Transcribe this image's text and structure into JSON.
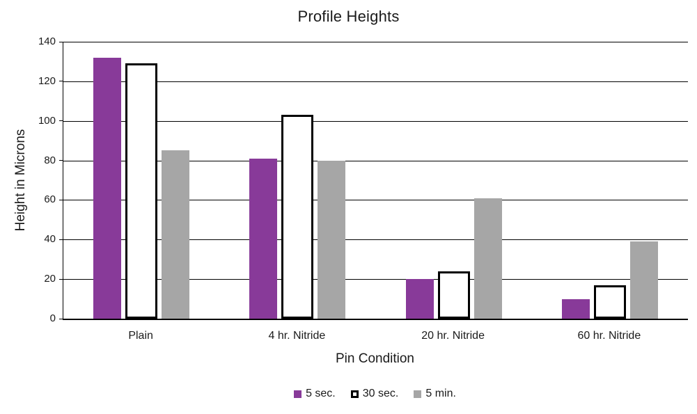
{
  "chart_data": {
    "type": "bar",
    "title": "Profile Heights",
    "xlabel": "Pin Condition",
    "ylabel": "Height in Microns",
    "categories": [
      "Plain",
      "4 hr. Nitride",
      "20 hr. Nitride",
      "60 hr. Nitride"
    ],
    "series": [
      {
        "name": "5 sec.",
        "values": [
          132,
          81,
          20,
          10
        ],
        "fill": "#883A99",
        "border_color": "#883A99",
        "border_width": 0
      },
      {
        "name": "30 sec.",
        "values": [
          129,
          103,
          24,
          17
        ],
        "fill": "#FFFFFF",
        "border_color": "#000000",
        "border_width": 3
      },
      {
        "name": "5 min.",
        "values": [
          85,
          80,
          61,
          39
        ],
        "fill": "#A6A6A6",
        "border_color": "#A6A6A6",
        "border_width": 0
      }
    ],
    "ylim": [
      0,
      140
    ],
    "ytick_step": 20,
    "grid": true,
    "gridline_color": "#000000",
    "axis_color": "#000000",
    "legend_position": "bottom"
  }
}
